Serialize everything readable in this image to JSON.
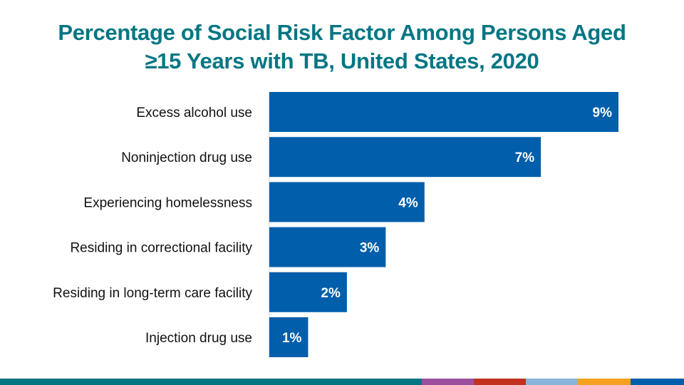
{
  "title": {
    "line1": "Percentage of Social Risk Factor Among Persons Aged",
    "line2": "≥15 Years with TB, United States, 2020"
  },
  "chart_data": {
    "type": "bar",
    "orientation": "horizontal",
    "title": "Percentage of Social Risk Factor Among Persons Aged ≥15 Years with TB, United States, 2020",
    "xlabel": "",
    "ylabel": "",
    "categories": [
      "Excess alcohol use",
      "Noninjection drug use",
      "Experiencing homelessness",
      "Residing in correctional facility",
      "Residing in long-term care facility",
      "Injection drug use"
    ],
    "values": [
      9,
      7,
      4,
      3,
      2,
      1
    ],
    "value_labels": [
      "9%",
      "7%",
      "4%",
      "3%",
      "2%",
      "1%"
    ],
    "unit": "%",
    "xlim": [
      0,
      9
    ],
    "grid": false,
    "legend": "none",
    "bar_color": "#005EAA"
  },
  "footer_colors": [
    "#037683",
    "#9C4F9E",
    "#C1311E",
    "#8AB4DA",
    "#F5A01E",
    "#005EAA"
  ]
}
